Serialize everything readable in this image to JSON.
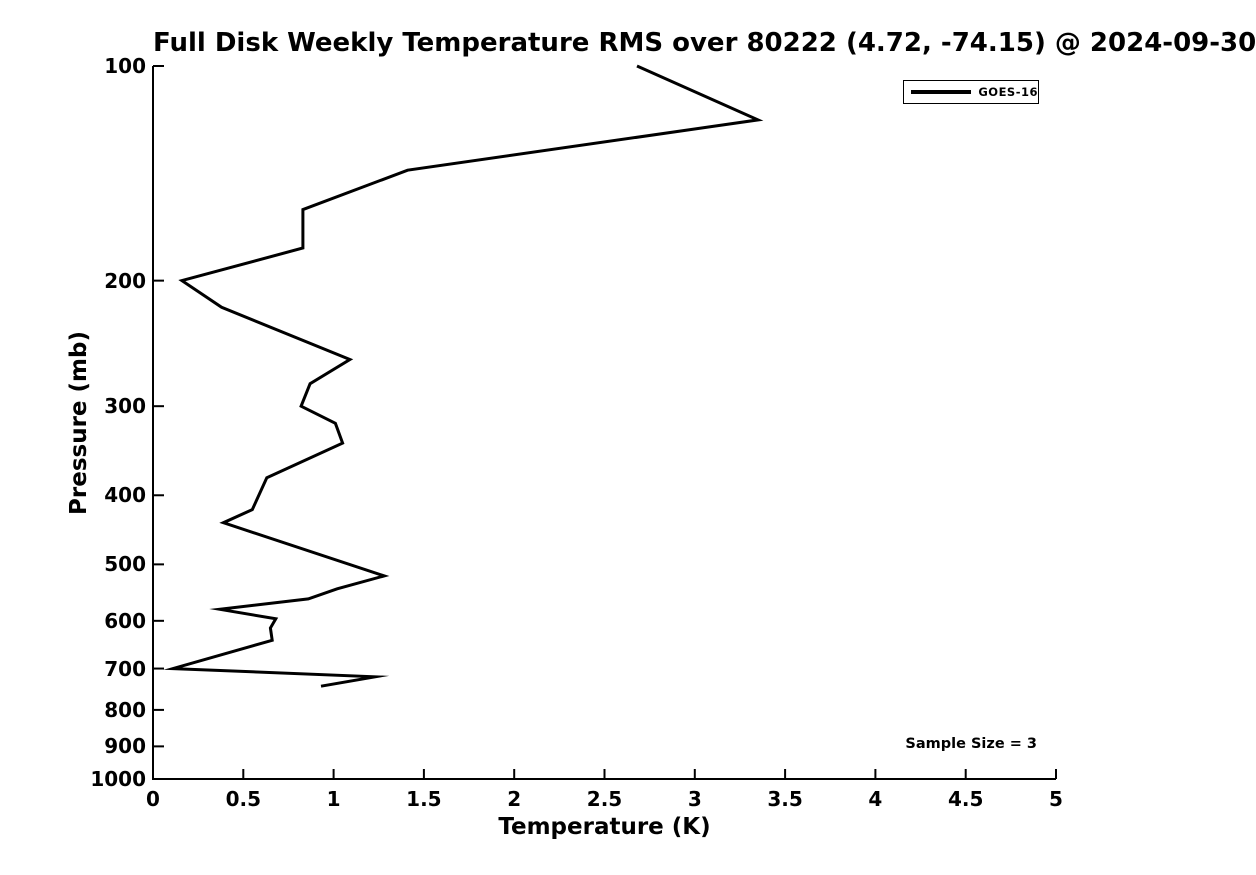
{
  "title": "Full Disk Weekly Temperature RMS over 80222 (4.72, -74.15) @ 2024-09-30",
  "legend": {
    "entries": [
      {
        "label": "GOES-16",
        "line_color": "#000000"
      }
    ]
  },
  "annotations": {
    "sample_size": "Sample Size = 3"
  },
  "colors": {
    "background": "#ffffff",
    "text": "#000000",
    "axis": "#000000",
    "series_line": "#000000"
  },
  "chart_data": {
    "type": "line",
    "title": "Full Disk Weekly Temperature RMS over 80222 (4.72, -74.15) @ 2024-09-30",
    "xlabel": "Temperature (K)",
    "ylabel": "Pressure (mb)",
    "xlim": [
      0,
      5
    ],
    "ylim": [
      100,
      1000
    ],
    "yscale": "log",
    "y_axis_inverted_downward": true,
    "grid": false,
    "legend_position": "upper right, inside axes",
    "xticks": [
      0,
      0.5,
      1,
      1.5,
      2,
      2.5,
      3,
      3.5,
      4,
      4.5,
      5
    ],
    "xtick_labels": [
      "0",
      "0.5",
      "1",
      "1.5",
      "2",
      "2.5",
      "3",
      "3.5",
      "4",
      "4.5",
      "5"
    ],
    "yticks": [
      100,
      200,
      300,
      400,
      500,
      600,
      700,
      800,
      900,
      1000
    ],
    "ytick_labels": [
      "100",
      "200",
      "300",
      "400",
      "500",
      "600",
      "700",
      "800",
      "900",
      "1000"
    ],
    "series": [
      {
        "name": "GOES-16",
        "color": "#000000",
        "x_temperature_k": [
          2.68,
          3.35,
          1.41,
          0.83,
          0.83,
          0.16,
          0.38,
          1.09,
          0.87,
          0.82,
          1.01,
          1.05,
          0.63,
          0.55,
          0.39,
          1.28,
          1.02,
          0.86,
          0.37,
          0.68,
          0.65,
          0.66,
          0.11,
          1.23,
          0.93
        ],
        "y_pressure_mb": [
          100,
          119,
          140,
          159,
          180,
          200,
          218,
          258,
          279,
          300,
          317,
          338,
          378,
          419,
          437,
          519,
          541,
          559,
          578,
          596,
          614,
          639,
          700,
          719,
          741
        ]
      }
    ],
    "annotations": [
      {
        "text": "Sample Size = 3",
        "position": "lower right inside axes"
      }
    ]
  }
}
